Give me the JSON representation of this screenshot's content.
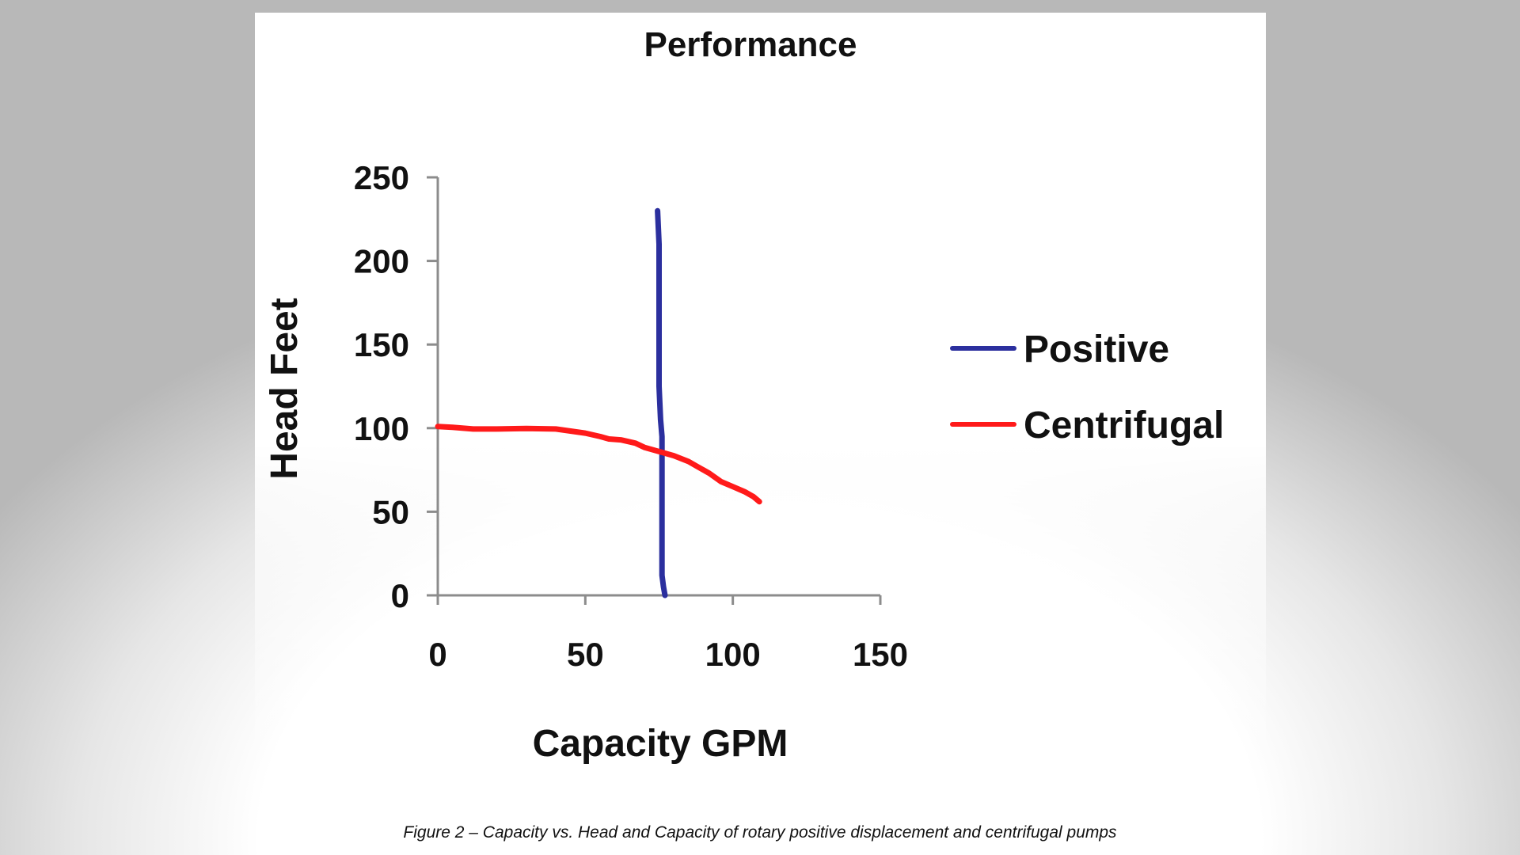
{
  "chart_data": {
    "type": "line",
    "title": "Performance",
    "xlabel": "Capacity GPM",
    "ylabel": "Head Feet",
    "xlim": [
      0,
      150
    ],
    "ylim": [
      0,
      250
    ],
    "xticks": [
      0,
      50,
      100,
      150
    ],
    "yticks": [
      0,
      50,
      100,
      150,
      200,
      250
    ],
    "grid": false,
    "legend_position": "right",
    "series": [
      {
        "name": "Positive",
        "color": "#2b2f9e",
        "points": [
          [
            77,
            0
          ],
          [
            76.5,
            5
          ],
          [
            76,
            12
          ],
          [
            76,
            40
          ],
          [
            76,
            80
          ],
          [
            76,
            95
          ],
          [
            75.5,
            105
          ],
          [
            75,
            125
          ],
          [
            75,
            150
          ],
          [
            75,
            180
          ],
          [
            75,
            210
          ],
          [
            74.5,
            230
          ]
        ]
      },
      {
        "name": "Centrifugal",
        "color": "#ff1a1a",
        "points": [
          [
            0,
            101
          ],
          [
            5,
            100.5
          ],
          [
            12,
            99.5
          ],
          [
            20,
            99.5
          ],
          [
            30,
            99.8
          ],
          [
            40,
            99.5
          ],
          [
            50,
            97
          ],
          [
            55,
            95
          ],
          [
            58,
            93.5
          ],
          [
            62,
            93
          ],
          [
            67,
            91
          ],
          [
            70,
            88.5
          ],
          [
            75,
            86
          ],
          [
            80,
            83.5
          ],
          [
            85,
            80
          ],
          [
            88,
            77
          ],
          [
            92,
            73
          ],
          [
            96,
            68
          ],
          [
            100,
            65
          ],
          [
            104,
            62
          ],
          [
            107,
            59
          ],
          [
            109,
            56
          ]
        ]
      }
    ]
  },
  "caption": "Figure 2 – Capacity vs. Head and Capacity of rotary positive displacement and centrifugal pumps"
}
